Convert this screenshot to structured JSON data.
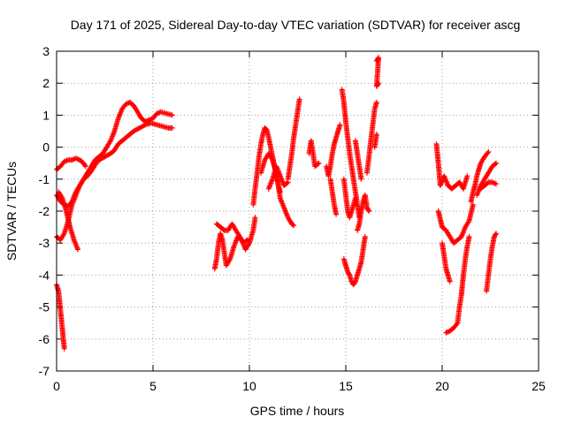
{
  "chart_data": {
    "type": "scatter",
    "title": "Day 171 of 2025, Sidereal Day-to-day VTEC variation (SDTVAR) for receiver ascg",
    "xlabel": "GPS time / hours",
    "ylabel": "SDTVAR / TECUs",
    "xlim": [
      0,
      25
    ],
    "ylim": [
      -7,
      3
    ],
    "xticks": [
      "0",
      "5",
      "10",
      "15",
      "20",
      "25"
    ],
    "yticks": [
      "-7",
      "-6",
      "-5",
      "-4",
      "-3",
      "-2",
      "-1",
      "0",
      "1",
      "2",
      "3"
    ],
    "grid": true,
    "marker_color": "#ff0000",
    "tracks": [
      [
        [
          0.0,
          -0.7
        ],
        [
          0.2,
          -0.6
        ],
        [
          0.4,
          -0.45
        ],
        [
          0.6,
          -0.4
        ],
        [
          0.8,
          -0.4
        ],
        [
          1.0,
          -0.35
        ],
        [
          1.2,
          -0.4
        ],
        [
          1.4,
          -0.5
        ],
        [
          1.5,
          -0.6
        ]
      ],
      [
        [
          0.0,
          -1.5
        ],
        [
          0.2,
          -1.7
        ],
        [
          0.4,
          -1.8
        ],
        [
          0.6,
          -1.85
        ],
        [
          0.8,
          -1.7
        ],
        [
          1.0,
          -1.4
        ],
        [
          1.2,
          -1.2
        ],
        [
          1.4,
          -1.0
        ],
        [
          1.6,
          -0.9
        ],
        [
          1.8,
          -0.75
        ],
        [
          2.0,
          -0.55
        ],
        [
          2.2,
          -0.4
        ],
        [
          2.5,
          -0.3
        ],
        [
          2.8,
          -0.2
        ],
        [
          3.0,
          -0.1
        ],
        [
          3.2,
          0.1
        ],
        [
          3.4,
          0.2
        ],
        [
          3.6,
          0.3
        ],
        [
          3.8,
          0.4
        ],
        [
          4.0,
          0.5
        ],
        [
          4.3,
          0.6
        ],
        [
          4.6,
          0.7
        ],
        [
          4.9,
          0.75
        ],
        [
          5.2,
          0.7
        ],
        [
          5.5,
          0.65
        ],
        [
          5.8,
          0.6
        ],
        [
          6.0,
          0.6
        ]
      ],
      [
        [
          0.0,
          -2.8
        ],
        [
          0.2,
          -2.9
        ],
        [
          0.4,
          -2.7
        ],
        [
          0.6,
          -2.3
        ],
        [
          0.8,
          -1.8
        ],
        [
          1.0,
          -1.5
        ],
        [
          1.2,
          -1.2
        ],
        [
          1.4,
          -1.0
        ],
        [
          1.6,
          -0.8
        ],
        [
          1.8,
          -0.6
        ],
        [
          2.0,
          -0.4
        ],
        [
          2.2,
          -0.3
        ],
        [
          2.4,
          -0.2
        ],
        [
          2.6,
          0.0
        ],
        [
          2.8,
          0.2
        ],
        [
          3.0,
          0.5
        ],
        [
          3.2,
          0.9
        ],
        [
          3.4,
          1.2
        ],
        [
          3.6,
          1.35
        ],
        [
          3.8,
          1.4
        ],
        [
          4.0,
          1.3
        ],
        [
          4.2,
          1.1
        ],
        [
          4.4,
          0.9
        ],
        [
          4.6,
          0.8
        ],
        [
          4.8,
          0.85
        ],
        [
          5.0,
          0.9
        ],
        [
          5.2,
          1.05
        ],
        [
          5.4,
          1.1
        ],
        [
          5.7,
          1.05
        ],
        [
          6.0,
          1.0
        ]
      ],
      [
        [
          0.1,
          -1.4
        ],
        [
          0.3,
          -1.6
        ],
        [
          0.5,
          -2.0
        ],
        [
          0.7,
          -2.5
        ],
        [
          0.9,
          -2.9
        ],
        [
          1.1,
          -3.2
        ]
      ],
      [
        [
          0.0,
          -4.3
        ],
        [
          0.1,
          -4.5
        ],
        [
          0.15,
          -4.8
        ],
        [
          0.2,
          -5.1
        ],
        [
          0.25,
          -5.4
        ],
        [
          0.3,
          -5.7
        ],
        [
          0.35,
          -6.0
        ],
        [
          0.4,
          -6.3
        ]
      ],
      [
        [
          8.2,
          -3.8
        ],
        [
          8.3,
          -3.5
        ],
        [
          8.4,
          -3.0
        ],
        [
          8.5,
          -2.7
        ],
        [
          8.6,
          -2.9
        ],
        [
          8.7,
          -3.3
        ],
        [
          8.8,
          -3.7
        ],
        [
          9.0,
          -3.5
        ],
        [
          9.2,
          -3.1
        ],
        [
          9.4,
          -2.8
        ],
        [
          9.6,
          -2.9
        ],
        [
          9.8,
          -3.2
        ],
        [
          10.0,
          -3.0
        ],
        [
          10.2,
          -2.6
        ],
        [
          10.3,
          -2.2
        ]
      ],
      [
        [
          8.3,
          -2.4
        ],
        [
          8.5,
          -2.5
        ],
        [
          8.7,
          -2.6
        ],
        [
          8.9,
          -2.6
        ],
        [
          9.1,
          -2.4
        ],
        [
          9.3,
          -2.6
        ],
        [
          9.5,
          -2.8
        ],
        [
          9.7,
          -3.0
        ],
        [
          9.9,
          -2.9
        ]
      ],
      [
        [
          10.2,
          -1.8
        ],
        [
          10.3,
          -1.3
        ],
        [
          10.4,
          -0.8
        ],
        [
          10.5,
          -0.3
        ],
        [
          10.6,
          0.1
        ],
        [
          10.7,
          0.4
        ],
        [
          10.8,
          0.6
        ],
        [
          10.9,
          0.55
        ],
        [
          11.0,
          0.3
        ],
        [
          11.1,
          0.0
        ],
        [
          11.2,
          -0.3
        ],
        [
          11.3,
          -0.6
        ],
        [
          11.4,
          -0.9
        ],
        [
          11.5,
          -1.2
        ],
        [
          11.6,
          -1.4
        ]
      ],
      [
        [
          10.6,
          -0.8
        ],
        [
          10.8,
          -0.4
        ],
        [
          11.0,
          -0.2
        ],
        [
          11.2,
          -0.4
        ],
        [
          11.4,
          -0.8
        ],
        [
          11.5,
          -1.2
        ],
        [
          11.6,
          -1.6
        ],
        [
          11.8,
          -1.9
        ],
        [
          12.0,
          -2.2
        ],
        [
          12.2,
          -2.4
        ],
        [
          12.3,
          -2.45
        ]
      ],
      [
        [
          11.0,
          -1.3
        ],
        [
          11.2,
          -1.0
        ],
        [
          11.4,
          -0.6
        ],
        [
          11.6,
          -0.9
        ],
        [
          11.8,
          -1.2
        ],
        [
          12.0,
          -1.1
        ]
      ],
      [
        [
          12.0,
          -1.0
        ],
        [
          12.1,
          -0.6
        ],
        [
          12.2,
          -0.2
        ],
        [
          12.3,
          0.3
        ],
        [
          12.4,
          0.7
        ],
        [
          12.5,
          1.1
        ],
        [
          12.6,
          1.5
        ]
      ],
      [
        [
          13.1,
          -0.2
        ],
        [
          13.2,
          0.2
        ],
        [
          13.4,
          -0.6
        ],
        [
          13.6,
          -0.5
        ]
      ],
      [
        [
          14.0,
          -0.6
        ],
        [
          14.1,
          -0.9
        ],
        [
          14.2,
          -0.6
        ],
        [
          14.3,
          -0.2
        ],
        [
          14.4,
          0.1
        ],
        [
          14.5,
          0.3
        ],
        [
          14.6,
          0.5
        ],
        [
          14.7,
          0.7
        ]
      ],
      [
        [
          14.2,
          -1.0
        ],
        [
          14.3,
          -1.4
        ],
        [
          14.4,
          -1.8
        ],
        [
          14.5,
          -2.1
        ]
      ],
      [
        [
          14.8,
          1.8
        ],
        [
          14.9,
          1.4
        ],
        [
          15.0,
          0.8
        ],
        [
          15.1,
          0.3
        ],
        [
          15.2,
          -0.2
        ],
        [
          15.3,
          -0.6
        ],
        [
          15.4,
          -1.0
        ],
        [
          15.5,
          -1.4
        ],
        [
          15.6,
          -1.8
        ],
        [
          15.7,
          -2.2
        ]
      ],
      [
        [
          14.9,
          -1.0
        ],
        [
          15.0,
          -1.5
        ],
        [
          15.1,
          -2.0
        ],
        [
          15.2,
          -2.2
        ],
        [
          15.3,
          -2.0
        ],
        [
          15.5,
          -1.6
        ]
      ],
      [
        [
          14.9,
          -3.5
        ],
        [
          15.0,
          -3.7
        ],
        [
          15.1,
          -3.9
        ],
        [
          15.2,
          -4.0
        ],
        [
          15.3,
          -4.2
        ],
        [
          15.4,
          -4.3
        ],
        [
          15.5,
          -4.2
        ],
        [
          15.6,
          -4.0
        ],
        [
          15.7,
          -3.8
        ],
        [
          15.8,
          -3.6
        ],
        [
          15.9,
          -3.2
        ],
        [
          16.0,
          -2.8
        ]
      ],
      [
        [
          15.6,
          -2.6
        ],
        [
          15.7,
          -2.4
        ],
        [
          15.8,
          -2.0
        ],
        [
          15.9,
          -1.7
        ],
        [
          16.0,
          -1.5
        ],
        [
          16.1,
          -1.9
        ],
        [
          16.2,
          -2.0
        ]
      ],
      [
        [
          15.5,
          0.2
        ],
        [
          15.6,
          -0.2
        ],
        [
          15.7,
          -0.6
        ],
        [
          15.8,
          -1.0
        ]
      ],
      [
        [
          16.1,
          -0.8
        ],
        [
          16.2,
          -0.3
        ],
        [
          16.3,
          0.2
        ],
        [
          16.4,
          0.7
        ],
        [
          16.5,
          1.2
        ],
        [
          16.6,
          1.4
        ]
      ],
      [
        [
          16.5,
          0.0
        ],
        [
          16.6,
          0.4
        ]
      ],
      [
        [
          16.6,
          2.7
        ],
        [
          16.7,
          2.8
        ],
        [
          16.6,
          1.9
        ],
        [
          16.7,
          2.0
        ]
      ],
      [
        [
          19.7,
          0.1
        ],
        [
          19.8,
          -0.5
        ],
        [
          19.9,
          -1.2
        ],
        [
          20.1,
          -0.9
        ],
        [
          20.3,
          -1.2
        ],
        [
          20.5,
          -1.3
        ],
        [
          20.7,
          -1.2
        ],
        [
          20.9,
          -1.1
        ],
        [
          21.1,
          -1.3
        ],
        [
          21.3,
          -0.9
        ]
      ],
      [
        [
          19.8,
          -2.0
        ],
        [
          20.0,
          -2.5
        ],
        [
          20.2,
          -2.6
        ],
        [
          20.4,
          -2.8
        ],
        [
          20.6,
          -3.0
        ],
        [
          20.8,
          -2.9
        ],
        [
          21.0,
          -2.8
        ],
        [
          21.2,
          -2.5
        ],
        [
          21.4,
          -2.3
        ],
        [
          21.6,
          -1.8
        ]
      ],
      [
        [
          20.0,
          -3.0
        ],
        [
          20.1,
          -3.4
        ],
        [
          20.2,
          -3.8
        ],
        [
          20.3,
          -4.0
        ],
        [
          20.4,
          -4.2
        ]
      ],
      [
        [
          20.2,
          -5.8
        ],
        [
          20.4,
          -5.75
        ],
        [
          20.6,
          -5.65
        ],
        [
          20.8,
          -5.5
        ],
        [
          20.9,
          -5.0
        ],
        [
          21.0,
          -4.6
        ],
        [
          21.1,
          -4.0
        ],
        [
          21.2,
          -3.5
        ],
        [
          21.3,
          -3.1
        ],
        [
          21.4,
          -2.8
        ]
      ],
      [
        [
          21.5,
          -1.7
        ],
        [
          21.6,
          -1.4
        ],
        [
          21.7,
          -1.2
        ],
        [
          21.8,
          -0.9
        ],
        [
          21.9,
          -0.7
        ],
        [
          22.0,
          -0.5
        ],
        [
          22.2,
          -0.3
        ],
        [
          22.4,
          -0.15
        ]
      ],
      [
        [
          21.8,
          -1.5
        ],
        [
          22.0,
          -1.2
        ],
        [
          22.2,
          -1.0
        ],
        [
          22.4,
          -0.8
        ],
        [
          22.6,
          -0.6
        ],
        [
          22.8,
          -0.5
        ]
      ],
      [
        [
          22.0,
          -1.3
        ],
        [
          22.2,
          -1.2
        ],
        [
          22.4,
          -1.1
        ],
        [
          22.6,
          -1.1
        ],
        [
          22.8,
          -1.15
        ]
      ],
      [
        [
          22.3,
          -4.5
        ],
        [
          22.4,
          -4.0
        ],
        [
          22.5,
          -3.5
        ],
        [
          22.6,
          -3.1
        ],
        [
          22.7,
          -2.8
        ],
        [
          22.8,
          -2.7
        ]
      ]
    ]
  }
}
